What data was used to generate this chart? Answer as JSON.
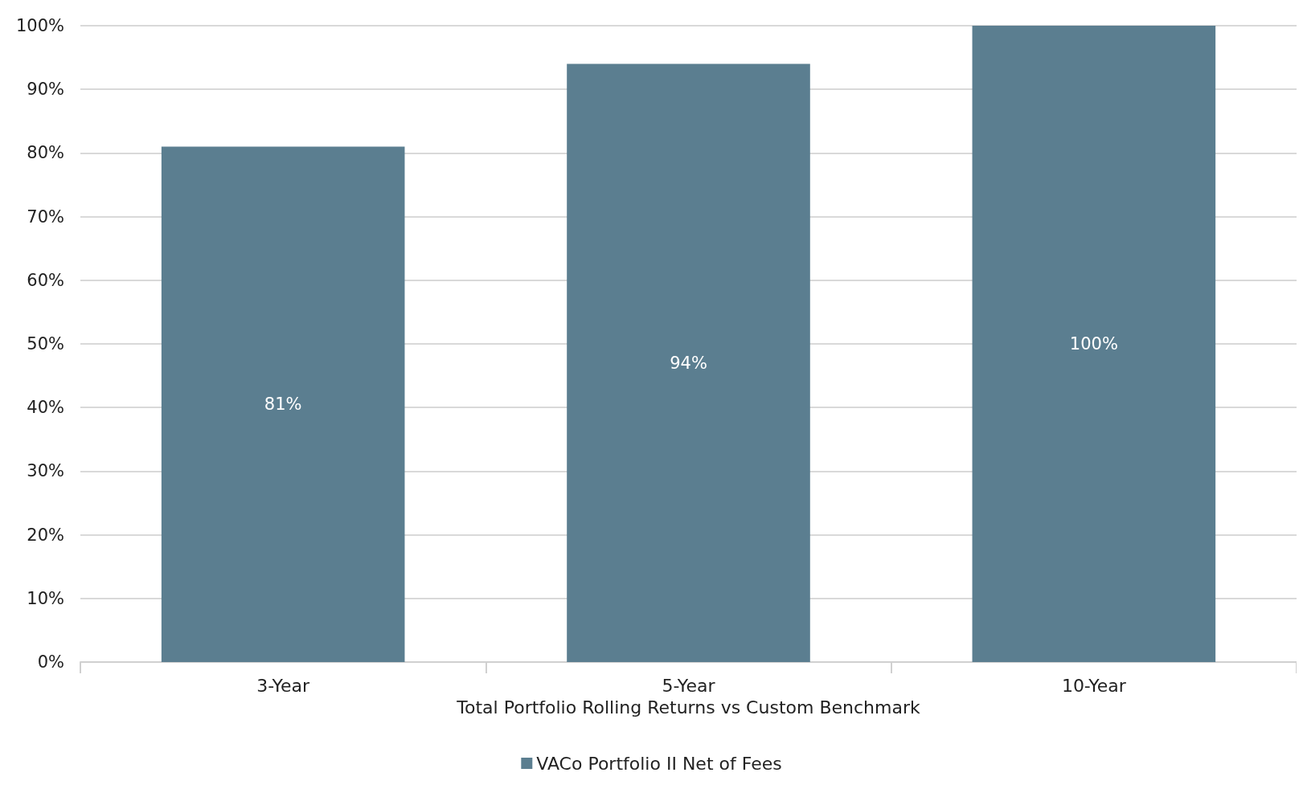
{
  "chart_data": {
    "type": "bar",
    "xlabel": "Total Portfolio Rolling Returns vs Custom Benchmark",
    "categories": [
      "3-Year",
      "5-Year",
      "10-Year"
    ],
    "series": [
      {
        "name": "VACo Portfolio II Net of Fees",
        "color": "#5b7e90",
        "values": [
          81,
          94,
          100
        ],
        "value_labels": [
          "81%",
          "94%",
          "100%"
        ]
      }
    ],
    "ylim": [
      0,
      100
    ],
    "yticks": [
      {
        "value": 0,
        "label": "0%"
      },
      {
        "value": 10,
        "label": "10%"
      },
      {
        "value": 20,
        "label": "20%"
      },
      {
        "value": 30,
        "label": "30%"
      },
      {
        "value": 40,
        "label": "40%"
      },
      {
        "value": 50,
        "label": "50%"
      },
      {
        "value": 60,
        "label": "60%"
      },
      {
        "value": 70,
        "label": "70%"
      },
      {
        "value": 80,
        "label": "80%"
      },
      {
        "value": 90,
        "label": "90%"
      },
      {
        "value": 100,
        "label": "100%"
      }
    ],
    "grid": "y",
    "legend": "bottom"
  }
}
